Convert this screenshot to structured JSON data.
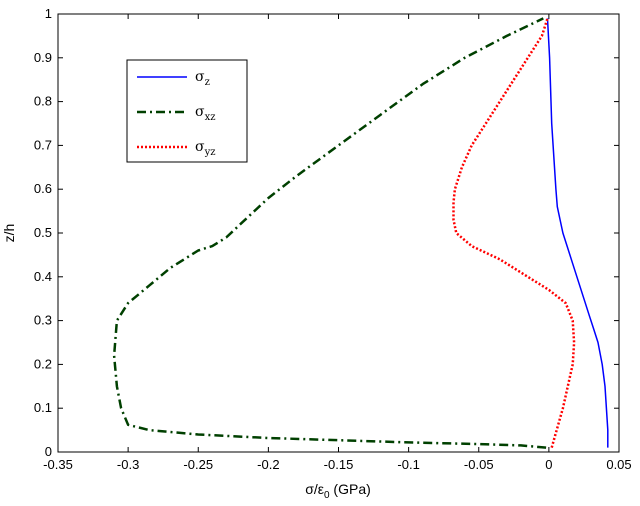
{
  "chart_data": {
    "type": "line",
    "xlabel_main": "σ/ε",
    "xlabel_sub": "0",
    "xlabel_unit": " (GPa)",
    "ylabel": "z/h",
    "xlim": [
      -0.35,
      0.05
    ],
    "ylim": [
      0,
      1
    ],
    "xticks": [
      -0.35,
      -0.3,
      -0.25,
      -0.2,
      -0.15,
      -0.1,
      -0.05,
      0,
      0.05
    ],
    "xtick_labels": [
      "-0.35",
      "-0.3",
      "-0.25",
      "-0.2",
      "-0.15",
      "-0.1",
      "-0.05",
      "0",
      "0.05"
    ],
    "yticks": [
      0,
      0.1,
      0.2,
      0.3,
      0.4,
      0.5,
      0.6,
      0.7,
      0.8,
      0.9,
      1
    ],
    "ytick_labels": [
      "0",
      "0.1",
      "0.2",
      "0.3",
      "0.4",
      "0.5",
      "0.6",
      "0.7",
      "0.8",
      "0.9",
      "1"
    ],
    "grid": false,
    "legend_position": "top-left",
    "series": [
      {
        "name": "σ",
        "name_sub": "z",
        "color": "#0000ff",
        "dash": "solid",
        "x": [
          0.042,
          0.042,
          0.041,
          0.04,
          0.038,
          0.035,
          0.032,
          0.029,
          0.025,
          0.021,
          0.017,
          0.013,
          0.01,
          0.008,
          0.006,
          0.005,
          0.004,
          0.003,
          0.002,
          0.0015,
          0.001,
          0.0005,
          -0.001
        ],
        "y": [
          0.01,
          0.05,
          0.1,
          0.15,
          0.2,
          0.25,
          0.28,
          0.31,
          0.35,
          0.39,
          0.43,
          0.47,
          0.5,
          0.53,
          0.56,
          0.6,
          0.65,
          0.7,
          0.75,
          0.8,
          0.85,
          0.9,
          0.99
        ]
      },
      {
        "name": "σ",
        "name_sub": "xz",
        "color": "#004000",
        "dash": "dashdot",
        "x": [
          -0.002,
          -0.02,
          -0.05,
          -0.1,
          -0.15,
          -0.2,
          -0.25,
          -0.285,
          -0.3,
          -0.305,
          -0.308,
          -0.31,
          -0.308,
          -0.3,
          -0.285,
          -0.27,
          -0.25,
          -0.24,
          -0.23,
          -0.22,
          -0.2,
          -0.18,
          -0.15,
          -0.12,
          -0.09,
          -0.06,
          -0.03,
          -0.004
        ],
        "y": [
          0.01,
          0.015,
          0.018,
          0.022,
          0.027,
          0.032,
          0.04,
          0.05,
          0.062,
          0.1,
          0.15,
          0.22,
          0.3,
          0.34,
          0.38,
          0.42,
          0.46,
          0.47,
          0.49,
          0.52,
          0.58,
          0.63,
          0.7,
          0.77,
          0.84,
          0.9,
          0.95,
          0.99
        ]
      },
      {
        "name": "σ",
        "name_sub": "yz",
        "color": "#ff0000",
        "dash": "dotted",
        "x": [
          0.002,
          0.01,
          0.017,
          0.018,
          0.017,
          0.012,
          0.0,
          -0.015,
          -0.035,
          -0.055,
          -0.066,
          -0.068,
          -0.068,
          -0.067,
          -0.062,
          -0.055,
          -0.045,
          -0.035,
          -0.025,
          -0.015,
          -0.005,
          -0.001
        ],
        "y": [
          0.01,
          0.1,
          0.2,
          0.25,
          0.3,
          0.34,
          0.37,
          0.4,
          0.44,
          0.47,
          0.5,
          0.53,
          0.57,
          0.6,
          0.65,
          0.7,
          0.75,
          0.8,
          0.85,
          0.9,
          0.95,
          0.99
        ]
      }
    ]
  }
}
